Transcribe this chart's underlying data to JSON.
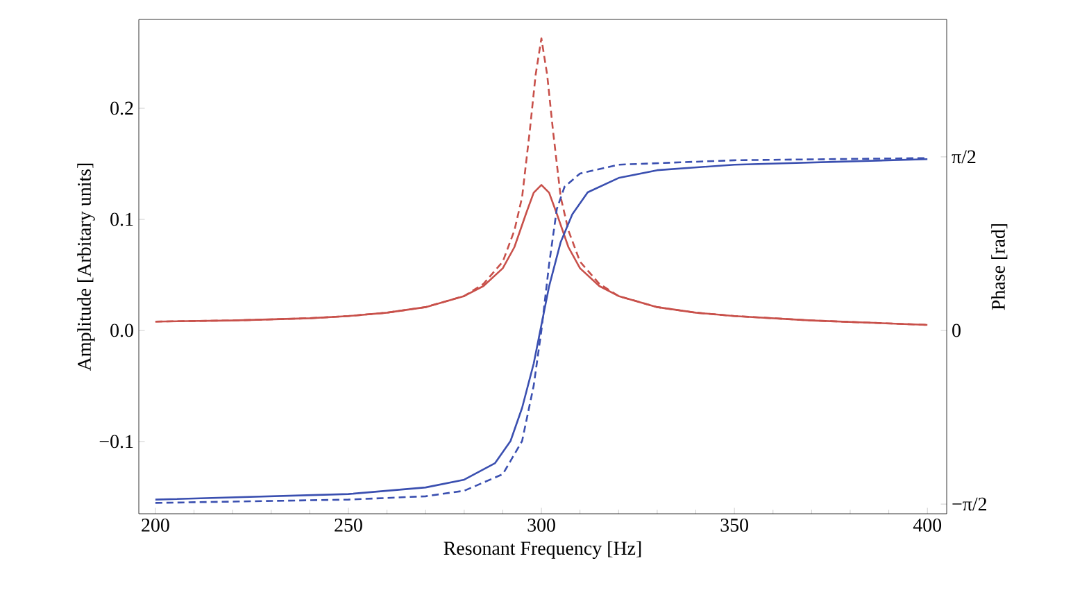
{
  "chart_data": {
    "type": "line",
    "xlabel": "Resonant Frequency [Hz]",
    "ylabel": "Amplitude [Arbitary units]",
    "y2label": "Phase [rad]",
    "xlim": [
      195.7,
      405
    ],
    "xticks": [
      200,
      250,
      300,
      350,
      400
    ],
    "ylim": [
      -0.165,
      0.28
    ],
    "yticks": [
      {
        "value": -0.1,
        "label": "−0.1"
      },
      {
        "value": 0.0,
        "label": "0.0"
      },
      {
        "value": 0.1,
        "label": "0.1"
      },
      {
        "value": 0.2,
        "label": "0.2"
      }
    ],
    "y2lim": [
      -1.658,
      2.814
    ],
    "y2ticks": [
      {
        "value": -1.5708,
        "label": "−π/2"
      },
      {
        "value": 0,
        "label": "0"
      },
      {
        "value": 1.5708,
        "label": "π/2"
      }
    ],
    "series": [
      {
        "color": "#c8504a",
        "line_style": "solid",
        "x": [
          200,
          220,
          240,
          250,
          260,
          270,
          280,
          285,
          290,
          293,
          296,
          298,
          300,
          302,
          304,
          307,
          310,
          315,
          320,
          330,
          340,
          350,
          370,
          400
        ],
        "values": [
          0.008,
          0.009,
          0.011,
          0.013,
          0.016,
          0.021,
          0.031,
          0.04,
          0.056,
          0.075,
          0.105,
          0.124,
          0.131,
          0.124,
          0.105,
          0.075,
          0.056,
          0.04,
          0.031,
          0.021,
          0.016,
          0.013,
          0.009,
          0.005
        ]
      },
      {
        "color": "#c8504a",
        "line_style": "dashed",
        "x": [
          200,
          220,
          240,
          250,
          260,
          270,
          280,
          285,
          290,
          293,
          295,
          297,
          298.5,
          300,
          301.5,
          303,
          305,
          307,
          310,
          315,
          320,
          330,
          340,
          350,
          370,
          400
        ],
        "values": [
          0.008,
          0.009,
          0.011,
          0.013,
          0.016,
          0.021,
          0.031,
          0.042,
          0.062,
          0.09,
          0.12,
          0.18,
          0.23,
          0.263,
          0.23,
          0.18,
          0.12,
          0.09,
          0.062,
          0.042,
          0.031,
          0.021,
          0.016,
          0.013,
          0.009,
          0.005
        ]
      },
      {
        "color": "#3a4fb0",
        "line_style": "solid",
        "axis": "y2",
        "x": [
          200,
          250,
          270,
          280,
          288,
          292,
          295,
          298,
          300,
          302,
          305,
          308,
          312,
          320,
          330,
          350,
          400
        ],
        "values": [
          -1.53,
          -1.48,
          -1.42,
          -1.35,
          -1.2,
          -1.0,
          -0.7,
          -0.3,
          0.05,
          0.4,
          0.8,
          1.05,
          1.25,
          1.38,
          1.45,
          1.5,
          1.55
        ]
      },
      {
        "color": "#3a4fb0",
        "line_style": "dashed",
        "axis": "y2",
        "x": [
          200,
          250,
          270,
          280,
          290,
          295,
          298,
          300,
          302,
          304,
          306,
          310,
          320,
          350,
          400
        ],
        "values": [
          -1.56,
          -1.53,
          -1.5,
          -1.45,
          -1.3,
          -1.0,
          -0.5,
          0,
          0.6,
          1.1,
          1.3,
          1.42,
          1.5,
          1.54,
          1.56
        ]
      }
    ]
  }
}
